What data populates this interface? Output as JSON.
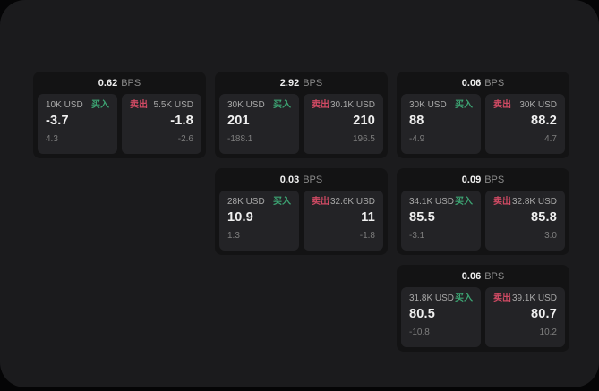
{
  "labels": {
    "buy": "买入",
    "sell": "卖出",
    "bps_unit": "BPS"
  },
  "colors": {
    "page_bg": "#1b1b1d",
    "card_bg": "#131314",
    "panel_bg": "#232326",
    "buy_green": "#3da473",
    "sell_red": "#cf4a63",
    "value_white": "#f0f0f0",
    "label_gray": "#a8a8a8",
    "sub_gray": "#7e7e7e",
    "bps_gray": "#8a8a8a"
  },
  "cards": [
    {
      "col": 0,
      "row": 0,
      "bps": "0.62",
      "buy": {
        "amount": "10K USD",
        "price": "-3.7",
        "change": "4.3"
      },
      "sell": {
        "amount": "5.5K USD",
        "price": "-1.8",
        "change": "-2.6"
      }
    },
    {
      "col": 1,
      "row": 0,
      "bps": "2.92",
      "buy": {
        "amount": "30K USD",
        "price": "201",
        "change": "-188.1"
      },
      "sell": {
        "amount": "30.1K USD",
        "price": "210",
        "change": "196.5"
      }
    },
    {
      "col": 2,
      "row": 0,
      "bps": "0.06",
      "buy": {
        "amount": "30K USD",
        "price": "88",
        "change": "-4.9"
      },
      "sell": {
        "amount": "30K USD",
        "price": "88.2",
        "change": "4.7"
      }
    },
    {
      "col": 1,
      "row": 1,
      "bps": "0.03",
      "buy": {
        "amount": "28K USD",
        "price": "10.9",
        "change": "1.3"
      },
      "sell": {
        "amount": "32.6K USD",
        "price": "11",
        "change": "-1.8"
      }
    },
    {
      "col": 2,
      "row": 1,
      "bps": "0.09",
      "buy": {
        "amount": "34.1K USD",
        "price": "85.5",
        "change": "-3.1"
      },
      "sell": {
        "amount": "32.8K USD",
        "price": "85.8",
        "change": "3.0"
      }
    },
    {
      "col": 2,
      "row": 2,
      "bps": "0.06",
      "buy": {
        "amount": "31.8K USD",
        "price": "80.5",
        "change": "-10.8"
      },
      "sell": {
        "amount": "39.1K USD",
        "price": "80.7",
        "change": "10.2"
      }
    }
  ]
}
